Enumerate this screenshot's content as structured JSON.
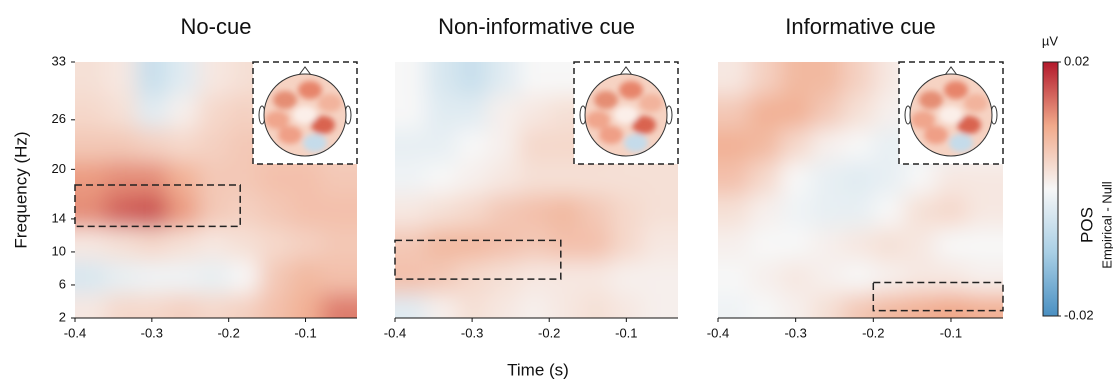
{
  "ylabel": "Frequency (Hz)",
  "xlabel": "Time (s)",
  "colorbar": {
    "unit": "µV",
    "label": "POS",
    "sublabel": "Empirical - Null",
    "clim": [
      -0.02,
      0.02
    ],
    "ticks": [
      0.02,
      -0.02
    ]
  },
  "chart_data": [
    {
      "type": "heatmap",
      "title": "No-cue",
      "x": [
        -0.38,
        -0.34,
        -0.3,
        -0.26,
        -0.22,
        -0.18,
        -0.14,
        -0.1,
        -0.06
      ],
      "y": [
        3,
        7,
        11,
        15,
        19,
        23,
        27,
        31
      ],
      "values": [
        [
          0.002,
          0.004,
          0.004,
          0.005,
          0.004,
          0.005,
          0.007,
          0.009,
          0.013
        ],
        [
          -0.004,
          -0.002,
          -0.001,
          -0.001,
          -0.002,
          0.0,
          0.006,
          0.008,
          0.007
        ],
        [
          0.002,
          0.003,
          0.004,
          0.003,
          0.002,
          0.003,
          0.004,
          0.005,
          0.006
        ],
        [
          0.012,
          0.015,
          0.016,
          0.011,
          0.006,
          0.005,
          0.006,
          0.007,
          0.007
        ],
        [
          0.011,
          0.012,
          0.012,
          0.009,
          0.006,
          0.006,
          0.007,
          0.007,
          0.006
        ],
        [
          0.006,
          0.006,
          0.005,
          0.004,
          0.005,
          0.006,
          0.006,
          0.006,
          0.005
        ],
        [
          0.004,
          0.003,
          -0.003,
          0.001,
          0.004,
          0.005,
          0.004,
          0.004,
          0.004
        ],
        [
          0.003,
          0.002,
          -0.006,
          -0.003,
          0.002,
          0.003,
          0.004,
          0.004,
          0.004
        ]
      ],
      "xlim": [
        -0.4,
        -0.033
      ],
      "ylim": [
        2,
        33
      ],
      "xticks": [
        -0.4,
        -0.3,
        -0.2,
        -0.1
      ],
      "yticks": [
        2,
        6,
        10,
        14,
        20,
        26,
        33
      ],
      "roi": {
        "xlim": [
          -0.4,
          -0.185
        ],
        "ylim": [
          13.1,
          18.1
        ]
      }
    },
    {
      "type": "heatmap",
      "title": "Non-informative cue",
      "x": [
        -0.38,
        -0.34,
        -0.3,
        -0.26,
        -0.22,
        -0.18,
        -0.14,
        -0.1,
        -0.06
      ],
      "y": [
        3,
        7,
        11,
        15,
        19,
        23,
        27,
        31
      ],
      "values": [
        [
          -0.003,
          0.001,
          0.003,
          0.002,
          0.001,
          0.002,
          0.003,
          0.002,
          0.001
        ],
        [
          0.007,
          0.006,
          0.004,
          0.003,
          0.002,
          0.002,
          0.002,
          0.001,
          0.001
        ],
        [
          0.006,
          0.008,
          0.008,
          0.007,
          0.006,
          0.007,
          0.007,
          0.004,
          0.002
        ],
        [
          0.002,
          0.003,
          0.004,
          0.006,
          0.007,
          0.008,
          0.006,
          0.004,
          0.003
        ],
        [
          -0.001,
          0.0,
          0.001,
          0.002,
          0.003,
          0.003,
          0.003,
          0.003,
          0.003
        ],
        [
          -0.002,
          -0.002,
          0.0,
          0.001,
          0.004,
          0.004,
          0.004,
          0.003,
          0.003
        ],
        [
          0.0,
          -0.003,
          -0.003,
          0.001,
          0.002,
          0.003,
          0.003,
          0.002,
          0.002
        ],
        [
          0.0,
          -0.004,
          -0.006,
          -0.003,
          0.0,
          0.0,
          0.0,
          0.0,
          0.0
        ]
      ],
      "xlim": [
        -0.4,
        -0.033
      ],
      "ylim": [
        2,
        33
      ],
      "xticks": [
        -0.4,
        -0.3,
        -0.2,
        -0.1
      ],
      "roi": {
        "xlim": [
          -0.4,
          -0.185
        ],
        "ylim": [
          6.7,
          11.4
        ]
      }
    },
    {
      "type": "heatmap",
      "title": "Informative cue",
      "x": [
        -0.38,
        -0.34,
        -0.3,
        -0.26,
        -0.22,
        -0.18,
        -0.14,
        -0.1,
        -0.06
      ],
      "y": [
        3,
        7,
        11,
        15,
        19,
        23,
        27,
        31
      ],
      "values": [
        [
          -0.001,
          0.0,
          0.001,
          0.003,
          0.006,
          0.008,
          0.009,
          0.01,
          0.009
        ],
        [
          0.0,
          0.001,
          0.002,
          0.001,
          0.0,
          0.001,
          0.002,
          0.002,
          0.001
        ],
        [
          0.001,
          0.0,
          0.0,
          0.001,
          0.002,
          0.003,
          0.002,
          0.0,
          0.0
        ],
        [
          0.003,
          0.001,
          -0.001,
          -0.002,
          -0.002,
          0.0,
          0.003,
          0.004,
          0.002
        ],
        [
          0.007,
          0.004,
          0.0,
          -0.002,
          -0.003,
          -0.002,
          0.0,
          0.002,
          0.002
        ],
        [
          0.009,
          0.008,
          0.004,
          0.001,
          0.0,
          -0.002,
          -0.001,
          -0.001,
          0.0
        ],
        [
          0.006,
          0.009,
          0.009,
          0.006,
          0.003,
          0.001,
          -0.001,
          -0.002,
          -0.001
        ],
        [
          0.002,
          0.005,
          0.008,
          0.008,
          0.005,
          0.002,
          0.0,
          0.0,
          0.0
        ]
      ],
      "xlim": [
        -0.4,
        -0.033
      ],
      "ylim": [
        2,
        33
      ],
      "xticks": [
        -0.4,
        -0.3,
        -0.2,
        -0.1
      ],
      "roi": {
        "xlim": [
          -0.2,
          -0.033
        ],
        "ylim": [
          2.9,
          6.3
        ]
      }
    }
  ]
}
